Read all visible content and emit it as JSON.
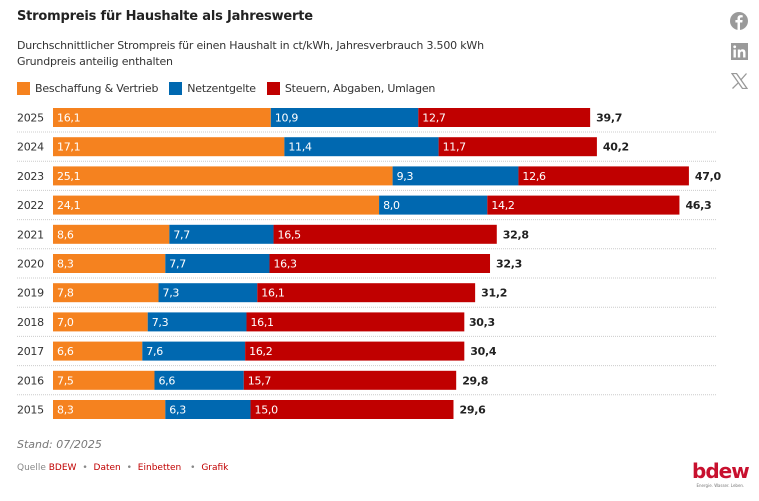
{
  "header": {
    "title": "Strompreis für Haushalte als Jahreswerte",
    "subtitle_line1": "Durchschnittlicher Strompreis für einen Haushalt in ct/kWh, Jahresverbrauch 3.500 kWh",
    "subtitle_line2": "Grundpreis anteilig enthalten"
  },
  "social": [
    {
      "name": "facebook-icon"
    },
    {
      "name": "linkedin-icon"
    },
    {
      "name": "x-icon"
    }
  ],
  "colors": {
    "beschaffung": "#f5821f",
    "netz": "#0068b0",
    "steuern": "#c00000",
    "gridline": "#cccccc",
    "label_light": "#ffffff",
    "total_text": "#222222"
  },
  "chart_data": {
    "type": "bar",
    "orientation": "horizontal",
    "stacked": true,
    "title": "Strompreis für Haushalte als Jahreswerte",
    "subtitle": "Durchschnittlicher Strompreis für einen Haushalt in ct/kWh, Jahresverbrauch 3.500 kWh; Grundpreis anteilig enthalten",
    "unit": "ct/kWh",
    "decimal_separator": ",",
    "legend_position": "top-left",
    "grid": false,
    "categories": [
      "2025",
      "2024",
      "2023",
      "2022",
      "2021",
      "2020",
      "2019",
      "2018",
      "2017",
      "2016",
      "2015"
    ],
    "series": [
      {
        "name": "Beschaffung & Vertrieb",
        "key": "beschaffung",
        "values": [
          16.1,
          17.1,
          25.1,
          24.1,
          8.6,
          8.3,
          7.8,
          7.0,
          6.6,
          7.5,
          8.3
        ]
      },
      {
        "name": "Netzentgelte",
        "key": "netz",
        "values": [
          10.9,
          11.4,
          9.3,
          8.0,
          7.7,
          7.7,
          7.3,
          7.3,
          7.6,
          6.6,
          6.3
        ]
      },
      {
        "name": "Steuern, Abgaben, Umlagen",
        "key": "steuern",
        "values": [
          12.7,
          11.7,
          12.6,
          14.2,
          16.5,
          16.3,
          16.1,
          16.1,
          16.2,
          15.7,
          15.0
        ]
      }
    ],
    "totals": [
      39.7,
      40.2,
      47.0,
      46.3,
      32.8,
      32.3,
      31.2,
      30.3,
      30.4,
      29.8,
      29.6
    ],
    "xlim": [
      0,
      50
    ]
  },
  "footer": {
    "stand": "Stand: 07/2025",
    "source_label": "Quelle",
    "source_link": "BDEW",
    "links": [
      "Daten",
      "Einbetten",
      "Grafik"
    ],
    "separator": "•"
  },
  "logo": {
    "word": "bdew",
    "tagline": "Energie. Wasser. Leben."
  }
}
